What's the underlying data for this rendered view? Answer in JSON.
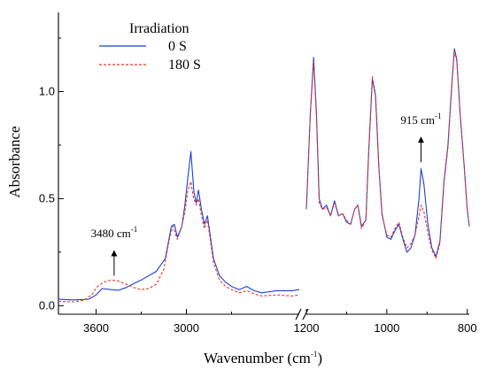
{
  "chart_data": {
    "type": "line",
    "xlabel": "Wavenumber (cm",
    "xlabel_sup": "-1",
    "xlabel_close": ")",
    "ylabel": "Absorbance",
    "broken_x_axis": true,
    "x_reversed": true,
    "panels": [
      {
        "xlim": [
          3850,
          2250
        ],
        "x_ticks": [
          3600,
          3000
        ],
        "x_tick_labels": [
          "3600",
          "3000"
        ]
      },
      {
        "xlim": [
          1200,
          795
        ],
        "x_ticks": [
          1200,
          1000,
          800
        ],
        "x_tick_labels": [
          "1200",
          "1000",
          "800"
        ]
      }
    ],
    "ylim": [
      -0.04,
      1.37
    ],
    "y_ticks": [
      0.0,
      0.5,
      1.0
    ],
    "y_tick_labels": [
      "0.0",
      "0.5",
      "1.0"
    ],
    "legend": {
      "title": "Irradiation",
      "placement": "top-left"
    },
    "series": [
      {
        "name": "0 S",
        "color": "#1f3fd1",
        "dash": "solid",
        "panel1": [
          [
            3850,
            0.03
          ],
          [
            3750,
            0.027
          ],
          [
            3650,
            0.03
          ],
          [
            3600,
            0.05
          ],
          [
            3560,
            0.08
          ],
          [
            3500,
            0.075
          ],
          [
            3450,
            0.072
          ],
          [
            3400,
            0.085
          ],
          [
            3300,
            0.12
          ],
          [
            3200,
            0.16
          ],
          [
            3140,
            0.22
          ],
          [
            3100,
            0.37
          ],
          [
            3080,
            0.38
          ],
          [
            3060,
            0.32
          ],
          [
            3030,
            0.37
          ],
          [
            3010,
            0.47
          ],
          [
            2990,
            0.6
          ],
          [
            2970,
            0.72
          ],
          [
            2950,
            0.53
          ],
          [
            2935,
            0.48
          ],
          [
            2920,
            0.54
          ],
          [
            2900,
            0.45
          ],
          [
            2880,
            0.38
          ],
          [
            2860,
            0.42
          ],
          [
            2840,
            0.32
          ],
          [
            2820,
            0.22
          ],
          [
            2780,
            0.14
          ],
          [
            2740,
            0.11
          ],
          [
            2700,
            0.09
          ],
          [
            2650,
            0.075
          ],
          [
            2600,
            0.09
          ],
          [
            2550,
            0.07
          ],
          [
            2500,
            0.06
          ],
          [
            2400,
            0.07
          ],
          [
            2300,
            0.07
          ],
          [
            2250,
            0.075
          ]
        ],
        "panel2": [
          [
            1200,
            0.45
          ],
          [
            1190,
            0.9
          ],
          [
            1182,
            1.16
          ],
          [
            1175,
            0.9
          ],
          [
            1168,
            0.5
          ],
          [
            1160,
            0.45
          ],
          [
            1150,
            0.47
          ],
          [
            1140,
            0.42
          ],
          [
            1130,
            0.49
          ],
          [
            1120,
            0.42
          ],
          [
            1110,
            0.43
          ],
          [
            1100,
            0.39
          ],
          [
            1090,
            0.38
          ],
          [
            1080,
            0.45
          ],
          [
            1072,
            0.47
          ],
          [
            1063,
            0.37
          ],
          [
            1052,
            0.4
          ],
          [
            1045,
            0.72
          ],
          [
            1036,
            1.06
          ],
          [
            1028,
            0.98
          ],
          [
            1020,
            0.65
          ],
          [
            1012,
            0.43
          ],
          [
            1000,
            0.32
          ],
          [
            990,
            0.31
          ],
          [
            980,
            0.35
          ],
          [
            970,
            0.38
          ],
          [
            960,
            0.31
          ],
          [
            950,
            0.25
          ],
          [
            940,
            0.27
          ],
          [
            930,
            0.33
          ],
          [
            920,
            0.5
          ],
          [
            915,
            0.64
          ],
          [
            908,
            0.57
          ],
          [
            898,
            0.38
          ],
          [
            888,
            0.27
          ],
          [
            878,
            0.23
          ],
          [
            868,
            0.3
          ],
          [
            858,
            0.58
          ],
          [
            848,
            0.75
          ],
          [
            838,
            1.05
          ],
          [
            832,
            1.2
          ],
          [
            826,
            1.15
          ],
          [
            818,
            0.9
          ],
          [
            808,
            0.66
          ],
          [
            800,
            0.45
          ],
          [
            795,
            0.37
          ]
        ]
      },
      {
        "name": "180 S",
        "color": "#e8372a",
        "dash": "dashed",
        "panel1": [
          [
            3850,
            0.02
          ],
          [
            3750,
            0.018
          ],
          [
            3680,
            0.025
          ],
          [
            3630,
            0.05
          ],
          [
            3590,
            0.09
          ],
          [
            3550,
            0.11
          ],
          [
            3500,
            0.12
          ],
          [
            3450,
            0.115
          ],
          [
            3400,
            0.1
          ],
          [
            3350,
            0.085
          ],
          [
            3300,
            0.075
          ],
          [
            3250,
            0.08
          ],
          [
            3200,
            0.1
          ],
          [
            3150,
            0.17
          ],
          [
            3110,
            0.32
          ],
          [
            3090,
            0.37
          ],
          [
            3060,
            0.31
          ],
          [
            3030,
            0.37
          ],
          [
            3010,
            0.44
          ],
          [
            2990,
            0.54
          ],
          [
            2970,
            0.58
          ],
          [
            2955,
            0.51
          ],
          [
            2935,
            0.47
          ],
          [
            2920,
            0.5
          ],
          [
            2900,
            0.42
          ],
          [
            2880,
            0.36
          ],
          [
            2860,
            0.4
          ],
          [
            2840,
            0.3
          ],
          [
            2820,
            0.2
          ],
          [
            2780,
            0.12
          ],
          [
            2740,
            0.09
          ],
          [
            2700,
            0.075
          ],
          [
            2650,
            0.06
          ],
          [
            2600,
            0.07
          ],
          [
            2550,
            0.055
          ],
          [
            2500,
            0.045
          ],
          [
            2400,
            0.05
          ],
          [
            2300,
            0.045
          ],
          [
            2250,
            0.05
          ]
        ],
        "panel2": [
          [
            1200,
            0.45
          ],
          [
            1190,
            0.9
          ],
          [
            1182,
            1.14
          ],
          [
            1175,
            0.88
          ],
          [
            1168,
            0.48
          ],
          [
            1160,
            0.45
          ],
          [
            1150,
            0.46
          ],
          [
            1140,
            0.42
          ],
          [
            1130,
            0.48
          ],
          [
            1120,
            0.42
          ],
          [
            1110,
            0.43
          ],
          [
            1100,
            0.4
          ],
          [
            1090,
            0.38
          ],
          [
            1080,
            0.45
          ],
          [
            1072,
            0.47
          ],
          [
            1063,
            0.36
          ],
          [
            1052,
            0.4
          ],
          [
            1045,
            0.72
          ],
          [
            1036,
            1.07
          ],
          [
            1028,
            0.99
          ],
          [
            1020,
            0.66
          ],
          [
            1012,
            0.42
          ],
          [
            1000,
            0.33
          ],
          [
            990,
            0.32
          ],
          [
            980,
            0.36
          ],
          [
            970,
            0.39
          ],
          [
            960,
            0.32
          ],
          [
            950,
            0.27
          ],
          [
            940,
            0.29
          ],
          [
            930,
            0.33
          ],
          [
            920,
            0.42
          ],
          [
            915,
            0.47
          ],
          [
            908,
            0.44
          ],
          [
            898,
            0.34
          ],
          [
            888,
            0.26
          ],
          [
            878,
            0.22
          ],
          [
            868,
            0.29
          ],
          [
            858,
            0.57
          ],
          [
            848,
            0.74
          ],
          [
            838,
            1.04
          ],
          [
            832,
            1.19
          ],
          [
            826,
            1.14
          ],
          [
            818,
            0.9
          ],
          [
            808,
            0.66
          ],
          [
            800,
            0.45
          ],
          [
            795,
            0.37
          ]
        ]
      }
    ],
    "annotations": [
      {
        "text": "3480 cm",
        "sup": "-1",
        "panel": 1,
        "x": 3480,
        "y_arrow_tail": 0.14,
        "y_arrow_head": 0.26,
        "y_text": 0.32
      },
      {
        "text": "915 cm",
        "sup": "-1",
        "panel": 2,
        "x": 915,
        "y_arrow_tail": 0.67,
        "y_arrow_head": 0.79,
        "y_text": 0.85
      }
    ]
  }
}
